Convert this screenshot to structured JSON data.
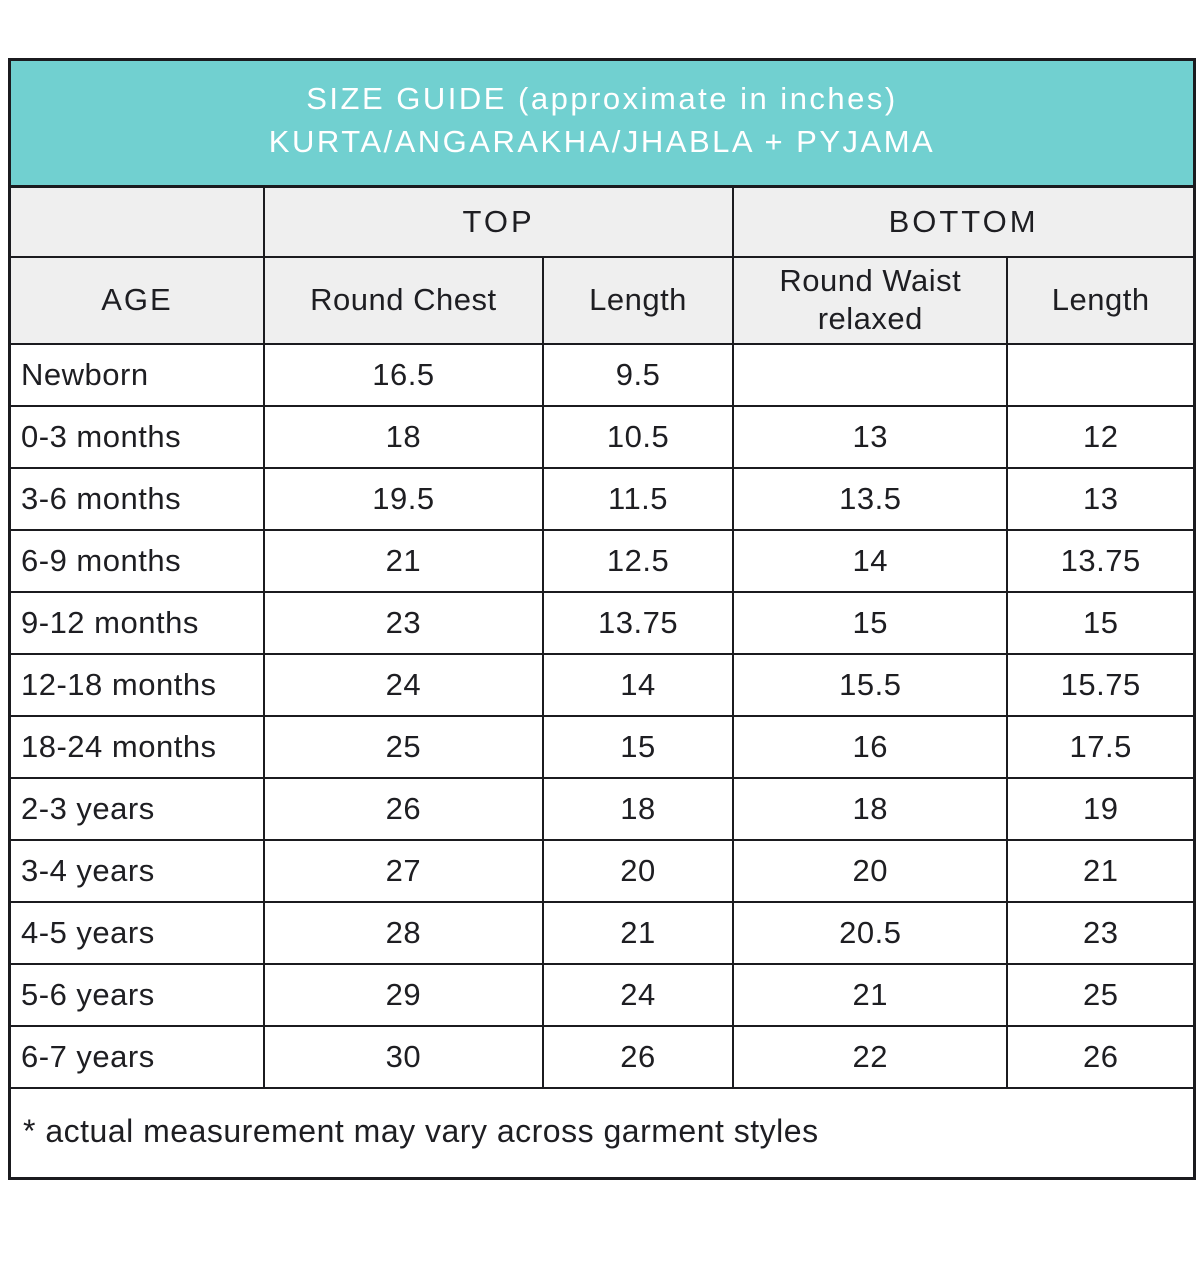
{
  "accent_color": "#71d0d0",
  "banner": {
    "title_line1": "SIZE GUIDE (approximate in inches)",
    "title_line2": "KURTA/ANGARAKHA/JHABLA + PYJAMA"
  },
  "table": {
    "group_headers": [
      {
        "label": "TOP"
      },
      {
        "label": "BOTTOM"
      }
    ],
    "columns": [
      "AGE",
      "Round Chest",
      "Length",
      "Round Waist relaxed",
      "Length"
    ],
    "rows": [
      {
        "age": "Newborn",
        "values": [
          "16.5",
          "9.5",
          "",
          ""
        ]
      },
      {
        "age": "0-3 months",
        "values": [
          "18",
          "10.5",
          "13",
          "12"
        ]
      },
      {
        "age": "3-6 months",
        "values": [
          "19.5",
          "11.5",
          "13.5",
          "13"
        ]
      },
      {
        "age": "6-9 months",
        "values": [
          "21",
          "12.5",
          "14",
          "13.75"
        ]
      },
      {
        "age": "9-12 months",
        "values": [
          "23",
          "13.75",
          "15",
          "15"
        ]
      },
      {
        "age": "12-18 months",
        "values": [
          "24",
          "14",
          "15.5",
          "15.75"
        ]
      },
      {
        "age": "18-24 months",
        "values": [
          "25",
          "15",
          "16",
          "17.5"
        ]
      },
      {
        "age": "2-3 years",
        "values": [
          "26",
          "18",
          "18",
          "19"
        ]
      },
      {
        "age": "3-4 years",
        "values": [
          "27",
          "20",
          "20",
          "21"
        ]
      },
      {
        "age": "4-5 years",
        "values": [
          "28",
          "21",
          "20.5",
          "23"
        ]
      },
      {
        "age": "5-6 years",
        "values": [
          "29",
          "24",
          "21",
          "25"
        ]
      },
      {
        "age": "6-7 years",
        "values": [
          "30",
          "26",
          "22",
          "26"
        ]
      }
    ],
    "footnote": "* actual measurement may vary across garment styles"
  }
}
